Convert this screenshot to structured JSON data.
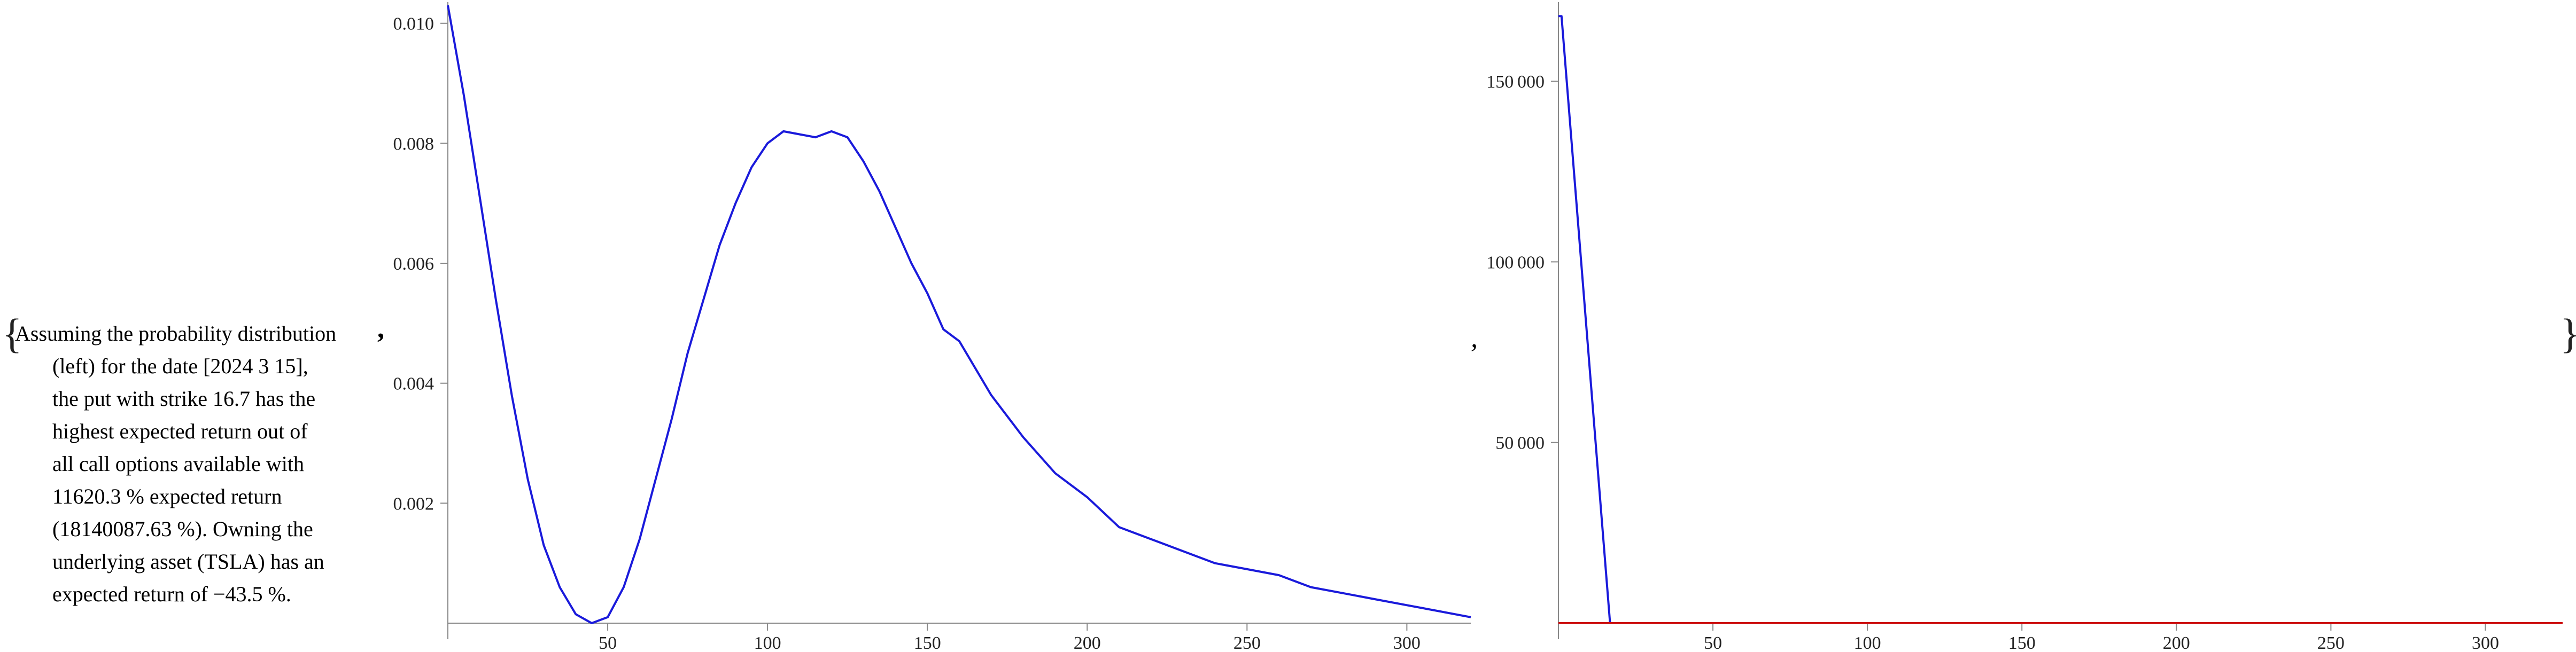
{
  "text": {
    "brace_open": "{",
    "brace_close": "}",
    "comma": ",",
    "description_lines": [
      "Assuming the probability distribution",
      "(left) for the date [2024 3 15],",
      "the put with strike 16.7 has the",
      "highest expected return out of",
      "all call options available with",
      "11620.3 % expected return",
      "(18140087.63 %). Owning the",
      "underlying asset (TSLA) has an",
      "expected return of −43.5 %."
    ]
  },
  "chart_data": [
    {
      "type": "line",
      "title": "",
      "xlabel": "",
      "ylabel": "",
      "xlim": [
        0,
        320
      ],
      "ylim": [
        0,
        0.0103
      ],
      "xticks": [
        50,
        100,
        150,
        200,
        250,
        300
      ],
      "yticks": [
        0.002,
        0.004,
        0.006,
        0.008,
        0.01
      ],
      "ytick_labels": [
        "0.002",
        "0.004",
        "0.006",
        "0.008",
        "0.010"
      ],
      "grid": false,
      "series": [
        {
          "color": "#1a1adb",
          "x": [
            0,
            5,
            10,
            15,
            20,
            25,
            30,
            35,
            40,
            45,
            50,
            55,
            60,
            65,
            70,
            75,
            80,
            85,
            90,
            95,
            100,
            105,
            110,
            115,
            120,
            125,
            130,
            135,
            140,
            145,
            150,
            155,
            160,
            170,
            180,
            190,
            200,
            210,
            220,
            230,
            240,
            250,
            260,
            270,
            280,
            290,
            300,
            310,
            320
          ],
          "y": [
            0.0103,
            0.0088,
            0.0071,
            0.0054,
            0.0038,
            0.0024,
            0.0013,
            0.0006,
            0.00015,
            0.0,
            0.0001,
            0.0006,
            0.0014,
            0.0024,
            0.0034,
            0.0045,
            0.0054,
            0.0063,
            0.007,
            0.0076,
            0.008,
            0.0082,
            0.00815,
            0.0081,
            0.0082,
            0.0081,
            0.0077,
            0.0072,
            0.0066,
            0.006,
            0.0055,
            0.0049,
            0.0047,
            0.0038,
            0.0031,
            0.0025,
            0.0021,
            0.0016,
            0.0014,
            0.0012,
            0.001,
            0.0009,
            0.0008,
            0.0006,
            0.0005,
            0.0004,
            0.0003,
            0.0002,
            0.0001
          ]
        }
      ]
    },
    {
      "type": "line",
      "title": "",
      "xlabel": "",
      "ylabel": "",
      "xlim": [
        0,
        325
      ],
      "ylim": [
        0,
        171000
      ],
      "xticks": [
        50,
        100,
        150,
        200,
        250,
        300
      ],
      "yticks": [
        50000,
        100000,
        150000
      ],
      "ytick_labels": [
        "50 000",
        "100 000",
        "150 000"
      ],
      "grid": false,
      "series": [
        {
          "color": "#1a1adb",
          "x": [
            0,
            1,
            16.7
          ],
          "y": [
            168000,
            168000,
            0
          ]
        },
        {
          "color": "#cc1111",
          "x": [
            0,
            100,
            200,
            325
          ],
          "y": [
            0,
            0,
            0,
            0
          ]
        }
      ]
    }
  ]
}
